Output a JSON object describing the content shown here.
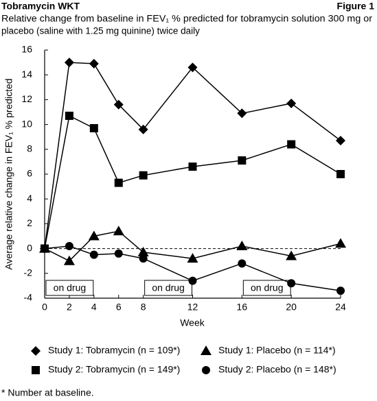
{
  "chart_data": {
    "type": "line",
    "header_left": "Tobramycin WKT",
    "header_right": "Figure 1",
    "subtitle": [
      "Relative change from baseline in FEV₁ % predicted for tobramycin solution 300 mg or",
      "placebo (saline with 1.25 mg quinine) twice daily"
    ],
    "y_label": "Average relative change in FEV₁ % predicted",
    "x_label": "Week",
    "x": [
      0,
      2,
      4,
      6,
      8,
      12,
      16,
      20,
      24
    ],
    "xlim": [
      0,
      24
    ],
    "xticks": [
      0,
      2,
      4,
      6,
      8,
      12,
      16,
      20,
      24
    ],
    "ylim": [
      -4,
      16
    ],
    "yticks": [
      -4,
      -2,
      0,
      2,
      4,
      6,
      8,
      10,
      12,
      14,
      16
    ],
    "hline": 0,
    "series": [
      {
        "name": "Study 1: Tobramycin (n = 109*)",
        "color": "#000000",
        "marker": "diamond",
        "values": [
          0,
          15.0,
          14.9,
          11.6,
          9.6,
          14.6,
          10.9,
          11.7,
          8.7
        ]
      },
      {
        "name": "Study 2: Tobramycin (n = 149*)",
        "color": "#000000",
        "marker": "square",
        "values": [
          0,
          10.7,
          9.7,
          5.3,
          5.9,
          6.6,
          7.1,
          8.4,
          6.0
        ]
      },
      {
        "name": "Study 1: Placebo (n = 114*)",
        "color": "#000000",
        "marker": "triangle",
        "values": [
          0,
          -1.0,
          1.0,
          1.4,
          -0.3,
          -0.8,
          0.2,
          -0.6,
          0.4
        ]
      },
      {
        "name": "Study 2: Placebo (n = 148*)",
        "color": "#000000",
        "marker": "circle",
        "values": [
          0,
          0.2,
          -0.5,
          -0.4,
          -0.8,
          -2.6,
          -1.2,
          -2.8,
          -3.4
        ]
      }
    ],
    "annotations": [
      {
        "text": "on drug",
        "start": 0,
        "end": 4
      },
      {
        "text": "on drug",
        "start": 8,
        "end": 12
      },
      {
        "text": "on drug",
        "start": 16,
        "end": 20
      }
    ],
    "footnote": "* Number at baseline."
  }
}
